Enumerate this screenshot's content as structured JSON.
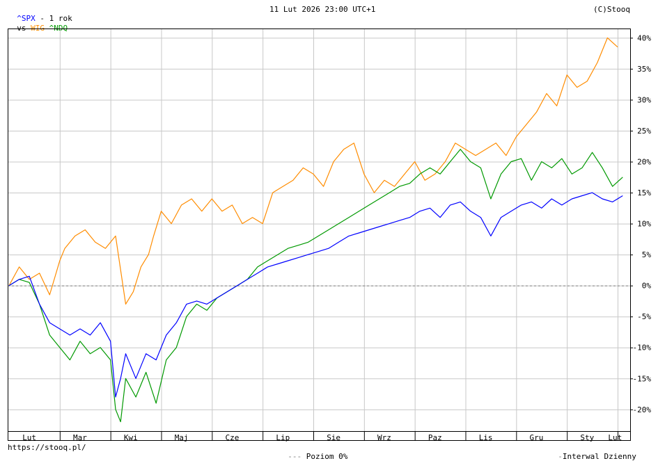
{
  "header": {
    "symbol": "^SPX",
    "period": "- 1 rok",
    "vs": "vs",
    "compare1": "WIG",
    "compare2": "^NDQ",
    "date": "11 Lut 2026 23:00 UTC+1",
    "copyright": "(C)Stooq"
  },
  "footer": {
    "url": "https://stooq.pl/",
    "baseline_label": "Poziom 0%",
    "interval_label": "Interwal Dzienny"
  },
  "colors": {
    "spx": "#0000ff",
    "wig": "#ff8c00",
    "ndq": "#009900",
    "symbol": "#0000ff",
    "grid": "#c8c8c8",
    "baseline": "#808080"
  },
  "chart_data": {
    "type": "line",
    "x_unit": "month",
    "x_range": [
      "Feb 2025",
      "Feb 2026"
    ],
    "categories": [
      "Lut",
      "Mar",
      "Kwi",
      "Maj",
      "Cze",
      "Lip",
      "Sie",
      "Wrz",
      "Paz",
      "Lis",
      "Gru",
      "Sty",
      "Lut"
    ],
    "y_ticks": [
      "40%",
      "35%",
      "30%",
      "25%",
      "20%",
      "15%",
      "10%",
      "5%",
      "0%",
      "-5%",
      "-10%",
      "-15%",
      "-20%"
    ],
    "ylim": [
      -23.5,
      41.5
    ],
    "grid": true,
    "baseline": 0,
    "series": [
      {
        "name": "WIG",
        "color": "#ff8c00",
        "x": [
          0,
          0.2,
          0.4,
          0.6,
          0.8,
          1.0,
          1.1,
          1.3,
          1.5,
          1.7,
          1.9,
          2.1,
          2.3,
          2.45,
          2.6,
          2.75,
          2.85,
          3.0,
          3.2,
          3.4,
          3.6,
          3.8,
          4.0,
          4.2,
          4.4,
          4.6,
          4.8,
          5.0,
          5.2,
          5.4,
          5.6,
          5.8,
          6.0,
          6.2,
          6.4,
          6.6,
          6.8,
          7.0,
          7.2,
          7.4,
          7.6,
          7.8,
          8.0,
          8.2,
          8.4,
          8.6,
          8.8,
          9.0,
          9.2,
          9.4,
          9.6,
          9.8,
          10.0,
          10.2,
          10.4,
          10.6,
          10.8,
          11.0,
          11.2,
          11.4,
          11.6,
          11.8,
          12.0
        ],
        "values": [
          0,
          3,
          1,
          2,
          -1.5,
          4,
          6,
          8,
          9,
          7,
          6,
          8,
          -3,
          -1,
          3,
          5,
          8,
          12,
          10,
          13,
          14,
          12,
          14,
          12,
          13,
          10,
          11,
          10,
          15,
          16,
          17,
          19,
          18,
          16,
          20,
          22,
          23,
          18,
          15,
          17,
          16,
          18,
          20,
          17,
          18,
          20,
          23,
          22,
          21,
          22,
          23,
          21,
          24,
          26,
          28,
          31,
          29,
          34,
          32,
          33,
          36,
          40,
          38.5
        ]
      },
      {
        "name": "^NDQ",
        "color": "#009900",
        "x": [
          0,
          0.2,
          0.4,
          0.6,
          0.8,
          1.0,
          1.2,
          1.4,
          1.6,
          1.8,
          2.0,
          2.1,
          2.2,
          2.3,
          2.5,
          2.7,
          2.9,
          3.1,
          3.3,
          3.5,
          3.7,
          3.9,
          4.1,
          4.3,
          4.5,
          4.7,
          4.9,
          5.1,
          5.3,
          5.5,
          5.7,
          5.9,
          6.1,
          6.3,
          6.5,
          6.7,
          6.9,
          7.1,
          7.3,
          7.5,
          7.7,
          7.9,
          8.1,
          8.3,
          8.5,
          8.7,
          8.9,
          9.1,
          9.3,
          9.5,
          9.7,
          9.9,
          10.1,
          10.3,
          10.5,
          10.7,
          10.9,
          11.1,
          11.3,
          11.5,
          11.7,
          11.9,
          12.1
        ],
        "values": [
          0,
          1,
          0.5,
          -3,
          -8,
          -10,
          -12,
          -9,
          -11,
          -10,
          -12,
          -20,
          -22,
          -15,
          -18,
          -14,
          -19,
          -12,
          -10,
          -5,
          -3,
          -4,
          -2,
          -1,
          0,
          1,
          3,
          4,
          5,
          6,
          6.5,
          7,
          8,
          9,
          10,
          11,
          12,
          13,
          14,
          15,
          16,
          16.5,
          18,
          19,
          18,
          20,
          22,
          20,
          19,
          14,
          18,
          20,
          20.5,
          17,
          20,
          19,
          20.5,
          18,
          19,
          21.5,
          19,
          16,
          17.5
        ]
      },
      {
        "name": "^SPX",
        "color": "#0000ff",
        "x": [
          0,
          0.2,
          0.4,
          0.6,
          0.8,
          1.0,
          1.2,
          1.4,
          1.6,
          1.8,
          2.0,
          2.1,
          2.2,
          2.3,
          2.5,
          2.7,
          2.9,
          3.1,
          3.3,
          3.5,
          3.7,
          3.9,
          4.1,
          4.3,
          4.5,
          4.7,
          4.9,
          5.1,
          5.3,
          5.5,
          5.7,
          5.9,
          6.1,
          6.3,
          6.5,
          6.7,
          6.9,
          7.1,
          7.3,
          7.5,
          7.7,
          7.9,
          8.1,
          8.3,
          8.5,
          8.7,
          8.9,
          9.1,
          9.3,
          9.5,
          9.7,
          9.9,
          10.1,
          10.3,
          10.5,
          10.7,
          10.9,
          11.1,
          11.3,
          11.5,
          11.7,
          11.9,
          12.1
        ],
        "values": [
          0,
          1,
          1.5,
          -3,
          -6,
          -7,
          -8,
          -7,
          -8,
          -6,
          -9,
          -18,
          -15,
          -11,
          -15,
          -11,
          -12,
          -8,
          -6,
          -3,
          -2.5,
          -3,
          -2,
          -1,
          0,
          1,
          2,
          3,
          3.5,
          4,
          4.5,
          5,
          5.5,
          6,
          7,
          8,
          8.5,
          9,
          9.5,
          10,
          10.5,
          11,
          12,
          12.5,
          11,
          13,
          13.5,
          12,
          11,
          8,
          11,
          12,
          13,
          13.5,
          12.5,
          14,
          13,
          14,
          14.5,
          15,
          14,
          13.5,
          14.5
        ]
      }
    ]
  }
}
